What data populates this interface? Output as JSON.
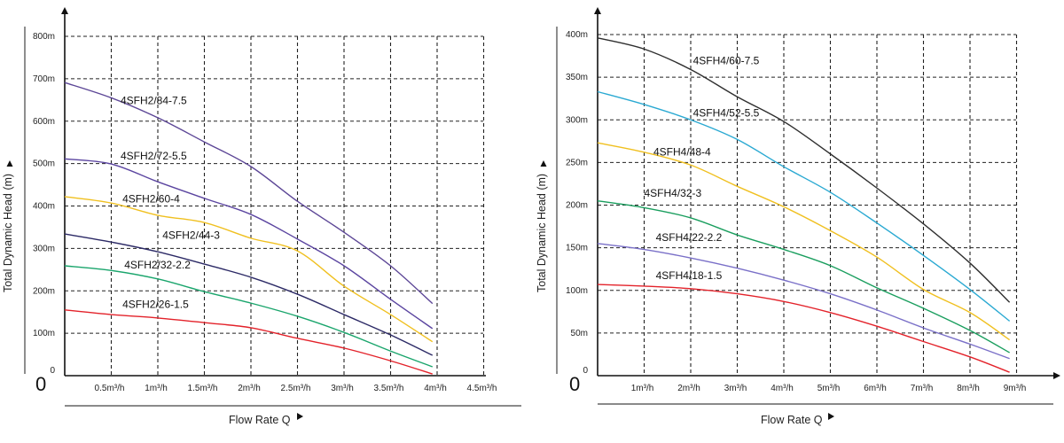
{
  "chart_data": [
    {
      "type": "line",
      "title": "",
      "xlabel": "Flow Rate Q",
      "ylabel": "Total Dynamic Head (m)",
      "origin_label": "0",
      "xlim": [
        0,
        4.5
      ],
      "ylim": [
        0,
        800
      ],
      "grid": true,
      "x_ticks": [
        0.5,
        1,
        1.5,
        2,
        2.5,
        3,
        3.5,
        4,
        4.5
      ],
      "x_tick_labels": [
        "0.5m³/h",
        "1m³/h",
        "1.5m³/h",
        "2m³/h",
        "2.5m³/h",
        "3m³/h",
        "3.5m³/h",
        "4m³/h",
        "4.5m³/h"
      ],
      "y_ticks": [
        0,
        100,
        200,
        300,
        400,
        500,
        600,
        700,
        800
      ],
      "y_tick_labels": [
        "0",
        "100m",
        "200m",
        "300m",
        "400m",
        "500m",
        "600m",
        "700m",
        "800m"
      ],
      "x": [
        0,
        0.5,
        1,
        1.5,
        2,
        2.5,
        3,
        3.5,
        3.95
      ],
      "series": [
        {
          "name": "4SFH2/84-7.5",
          "color": "#5c4696",
          "values": [
            691,
            655,
            608,
            551,
            493,
            411,
            338,
            259,
            170
          ],
          "label_at": [
            0.6,
            640
          ]
        },
        {
          "name": "4SFH2/72-5.5",
          "color": "#5b45a0",
          "values": [
            511,
            499,
            457,
            418,
            380,
            322,
            259,
            180,
            111
          ],
          "label_at": [
            0.6,
            510
          ]
        },
        {
          "name": "4SFH2/60-4",
          "color": "#f0c020",
          "values": [
            422,
            407,
            378,
            361,
            324,
            294,
            211,
            144,
            80
          ],
          "label_at": [
            0.62,
            408
          ]
        },
        {
          "name": "4SFH2/44-3",
          "color": "#2c2a66",
          "values": [
            334,
            315,
            292,
            263,
            232,
            192,
            144,
            96,
            48
          ],
          "label_at": [
            1.05,
            323
          ]
        },
        {
          "name": "4SFH2/32-2.2",
          "color": "#1aa56c",
          "values": [
            259,
            248,
            228,
            198,
            171,
            140,
            102,
            58,
            21
          ],
          "label_at": [
            0.64,
            253
          ]
        },
        {
          "name": "4SFH2/26-1.5",
          "color": "#e3222a",
          "values": [
            155,
            144,
            136,
            125,
            113,
            88,
            65,
            35,
            4
          ],
          "label_at": [
            0.62,
            160
          ]
        }
      ]
    },
    {
      "type": "line",
      "title": "",
      "xlabel": "Flow Rate Q",
      "ylabel": "Total Dynamic Head (m)",
      "origin_label": "0",
      "xlim": [
        0,
        9.5
      ],
      "ylim": [
        0,
        400
      ],
      "grid": true,
      "x_ticks": [
        1,
        2,
        3,
        4,
        5,
        6,
        7,
        8,
        9
      ],
      "x_tick_labels": [
        "1m³/h",
        "2m³/h",
        "3m³/h",
        "4m³/h",
        "5m³/h",
        "6m³/h",
        "7m³/h",
        "8m³/h",
        "9m³/h"
      ],
      "y_ticks": [
        0,
        50,
        100,
        150,
        200,
        250,
        300,
        350,
        400
      ],
      "y_tick_labels": [
        "0",
        "50m",
        "100m",
        "150m",
        "200m",
        "250m",
        "300m",
        "350m",
        "400m"
      ],
      "x": [
        0,
        1,
        2,
        3,
        4,
        5,
        6,
        7,
        8,
        8.85
      ],
      "series": [
        {
          "name": "4SFH4/60-7.5",
          "color": "#2f2f2f",
          "values": [
            396,
            383,
            359,
            327,
            298,
            260,
            220,
            178,
            132,
            86
          ],
          "label_at": [
            2.05,
            365
          ]
        },
        {
          "name": "4SFH4/52-5.5",
          "color": "#2aa9d2",
          "values": [
            333,
            318,
            300,
            277,
            245,
            215,
            179,
            141,
            101,
            64
          ],
          "label_at": [
            2.05,
            304
          ]
        },
        {
          "name": "4SFH4/48-4",
          "color": "#f0c020",
          "values": [
            273,
            262,
            247,
            222,
            198,
            170,
            139,
            101,
            74,
            42
          ],
          "label_at": [
            1.2,
            258
          ]
        },
        {
          "name": "4SFH4/32-3",
          "color": "#1a9e5e",
          "values": [
            205,
            197,
            185,
            165,
            148,
            129,
            103,
            79,
            53,
            27
          ],
          "label_at": [
            1.0,
            210
          ]
        },
        {
          "name": "4SFH4/22-2.2",
          "color": "#7a70c8",
          "values": [
            155,
            148,
            138,
            126,
            112,
            96,
            77,
            56,
            37,
            20
          ],
          "label_at": [
            1.25,
            158
          ]
        },
        {
          "name": "4SFH4/18-1.5",
          "color": "#e3222a",
          "values": [
            107,
            105,
            102,
            96,
            87,
            74,
            58,
            40,
            22,
            4
          ],
          "label_at": [
            1.25,
            113
          ]
        }
      ]
    }
  ]
}
